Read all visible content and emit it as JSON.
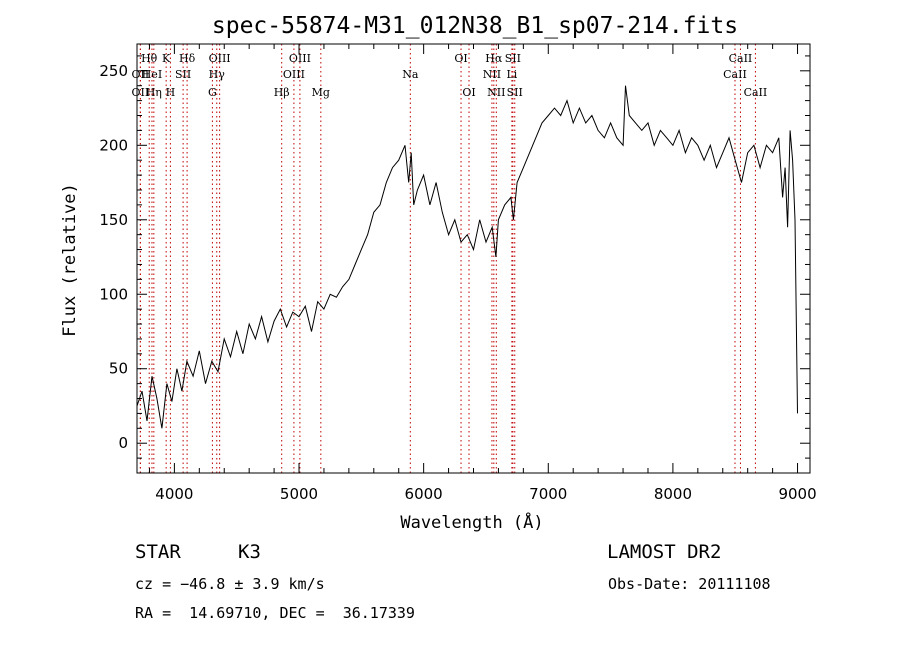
{
  "chart_data": {
    "type": "line",
    "title": "spec-55874-M31_012N38_B1_sp07-214.fits",
    "xlabel": "Wavelength (Å)",
    "ylabel": "Flux (relative)",
    "xlim": [
      3700,
      9100
    ],
    "ylim": [
      -20,
      268
    ],
    "xticks": [
      4000,
      5000,
      6000,
      7000,
      8000,
      9000
    ],
    "yticks": [
      0,
      50,
      100,
      150,
      200,
      250
    ],
    "grid": false,
    "series": [
      {
        "x": [
          3700,
          3740,
          3780,
          3820,
          3860,
          3900,
          3940,
          3980,
          4020,
          4060,
          4100,
          4150,
          4200,
          4250,
          4300,
          4350,
          4400,
          4450,
          4500,
          4550,
          4600,
          4650,
          4700,
          4750,
          4800,
          4850,
          4900,
          4950,
          5000,
          5050,
          5100,
          5150,
          5200,
          5250,
          5300,
          5350,
          5400,
          5450,
          5500,
          5550,
          5600,
          5650,
          5700,
          5750,
          5800,
          5850,
          5880,
          5900,
          5920,
          5950,
          6000,
          6050,
          6100,
          6150,
          6200,
          6250,
          6300,
          6350,
          6400,
          6450,
          6500,
          6550,
          6580,
          6600,
          6650,
          6700,
          6720,
          6750,
          6800,
          6850,
          6900,
          6950,
          7000,
          7050,
          7100,
          7150,
          7200,
          7250,
          7300,
          7350,
          7400,
          7450,
          7500,
          7550,
          7600,
          7620,
          7650,
          7700,
          7750,
          7800,
          7850,
          7900,
          7950,
          8000,
          8050,
          8100,
          8150,
          8200,
          8250,
          8300,
          8350,
          8400,
          8450,
          8500,
          8550,
          8600,
          8650,
          8700,
          8750,
          8800,
          8850,
          8880,
          8900,
          8920,
          8940,
          8960,
          8980,
          9000
        ],
        "values": [
          25,
          35,
          15,
          45,
          30,
          10,
          40,
          28,
          50,
          35,
          55,
          45,
          62,
          40,
          55,
          48,
          70,
          58,
          75,
          60,
          80,
          70,
          85,
          68,
          82,
          90,
          78,
          88,
          85,
          92,
          75,
          95,
          90,
          100,
          98,
          105,
          110,
          120,
          130,
          140,
          155,
          160,
          175,
          185,
          190,
          200,
          175,
          195,
          160,
          170,
          180,
          160,
          175,
          155,
          140,
          150,
          135,
          140,
          130,
          150,
          135,
          145,
          125,
          150,
          160,
          165,
          150,
          175,
          185,
          195,
          205,
          215,
          220,
          225,
          220,
          230,
          215,
          225,
          215,
          220,
          210,
          205,
          215,
          205,
          200,
          240,
          220,
          215,
          210,
          215,
          200,
          210,
          205,
          200,
          210,
          195,
          205,
          200,
          190,
          200,
          185,
          195,
          205,
          190,
          175,
          195,
          200,
          185,
          200,
          195,
          205,
          165,
          185,
          145,
          210,
          190,
          150,
          20
        ],
        "color": "#000000"
      }
    ],
    "spectral_lines": [
      {
        "label": "Hθ",
        "wavelength": 3798,
        "row": 1,
        "color": "#000000"
      },
      {
        "label": "OII",
        "wavelength": 3727,
        "row": 2,
        "color": "#000000"
      },
      {
        "label": "OII",
        "wavelength": 3727,
        "row": 3,
        "color": "#000000"
      },
      {
        "label": "HeI",
        "wavelength": 3820,
        "row": 2,
        "color": "#000000"
      },
      {
        "label": "Hη",
        "wavelength": 3835,
        "row": 3,
        "color": "#000000"
      },
      {
        "label": "K",
        "wavelength": 3934,
        "row": 1,
        "color": "#000000"
      },
      {
        "label": "H",
        "wavelength": 3968,
        "row": 3,
        "color": "#000000"
      },
      {
        "label": "SII",
        "wavelength": 4070,
        "row": 2,
        "color": "#000000"
      },
      {
        "label": "Hδ",
        "wavelength": 4102,
        "row": 1,
        "color": "#000000"
      },
      {
        "label": "Hγ",
        "wavelength": 4340,
        "row": 2,
        "color": "#000000"
      },
      {
        "label": "G",
        "wavelength": 4305,
        "row": 3,
        "color": "#000000"
      },
      {
        "label": "OIII",
        "wavelength": 4363,
        "row": 1,
        "color": "#000000"
      },
      {
        "label": "Hβ",
        "wavelength": 4861,
        "row": 3,
        "color": "#000000"
      },
      {
        "label": "OIII",
        "wavelength": 4959,
        "row": 2,
        "color": "#000000"
      },
      {
        "label": "OIII",
        "wavelength": 5007,
        "row": 1,
        "color": "#000000"
      },
      {
        "label": "Mg",
        "wavelength": 5175,
        "row": 3,
        "color": "#000000"
      },
      {
        "label": "Na",
        "wavelength": 5893,
        "row": 2,
        "color": "#000000"
      },
      {
        "label": "OI",
        "wavelength": 6300,
        "row": 1,
        "color": "#000000"
      },
      {
        "label": "OI",
        "wavelength": 6364,
        "row": 3,
        "color": "#000000"
      },
      {
        "label": "NII",
        "wavelength": 6548,
        "row": 2,
        "color": "#000000"
      },
      {
        "label": "NII",
        "wavelength": 6583,
        "row": 3,
        "color": "#000000"
      },
      {
        "label": "Hα",
        "wavelength": 6563,
        "row": 1,
        "color": "#000000"
      },
      {
        "label": "Li",
        "wavelength": 6708,
        "row": 2,
        "color": "#000000"
      },
      {
        "label": "SII",
        "wavelength": 6716,
        "row": 1,
        "color": "#000000"
      },
      {
        "label": "SII",
        "wavelength": 6731,
        "row": 3,
        "color": "#000000"
      },
      {
        "label": "CaII",
        "wavelength": 8498,
        "row": 2,
        "color": "#000000"
      },
      {
        "label": "CaII",
        "wavelength": 8542,
        "row": 1,
        "color": "#000000"
      },
      {
        "label": "CaII",
        "wavelength": 8662,
        "row": 3,
        "color": "#000000"
      }
    ],
    "line_marker_color": "#c00000"
  },
  "info": {
    "class_label": "STAR",
    "subclass": "K3",
    "survey": "LAMOST DR2",
    "cz": "cz = −46.8 ± 3.9 km/s",
    "obs_date": "Obs-Date: 20111108",
    "coords": "RA =  14.69710, DEC =  36.17339"
  }
}
